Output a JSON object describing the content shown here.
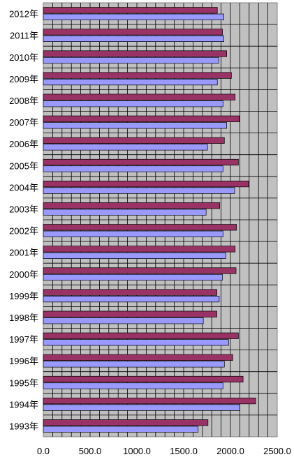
{
  "chart_data": {
    "type": "bar",
    "orientation": "horizontal",
    "categories": [
      "2012年",
      "2011年",
      "2010年",
      "2009年",
      "2008年",
      "2007年",
      "2006年",
      "2005年",
      "2004年",
      "2003年",
      "2002年",
      "2001年",
      "2000年",
      "1999年",
      "1998年",
      "1997年",
      "1996年",
      "1995年",
      "1994年",
      "1993年"
    ],
    "series": [
      {
        "values": [
          1860,
          1915,
          1960,
          2010,
          2050,
          2095,
          1935,
          2085,
          2195,
          1885,
          2065,
          2050,
          2060,
          1855,
          1855,
          2085,
          2025,
          2135,
          2270,
          1760
        ],
        "color": "#993366"
      },
      {
        "values": [
          1930,
          1930,
          1875,
          1860,
          1920,
          1960,
          1755,
          1920,
          2045,
          1740,
          1920,
          1950,
          1915,
          1880,
          1710,
          1980,
          1935,
          1920,
          2100,
          1655
        ],
        "color": "#9999ff"
      }
    ],
    "xlim": [
      0,
      2500
    ],
    "xticks": [
      "0.0",
      "500.0",
      "1000.0",
      "1500.0",
      "2000.0",
      "2500.0"
    ],
    "grid": true,
    "plot_background": "#c0c0c0"
  }
}
